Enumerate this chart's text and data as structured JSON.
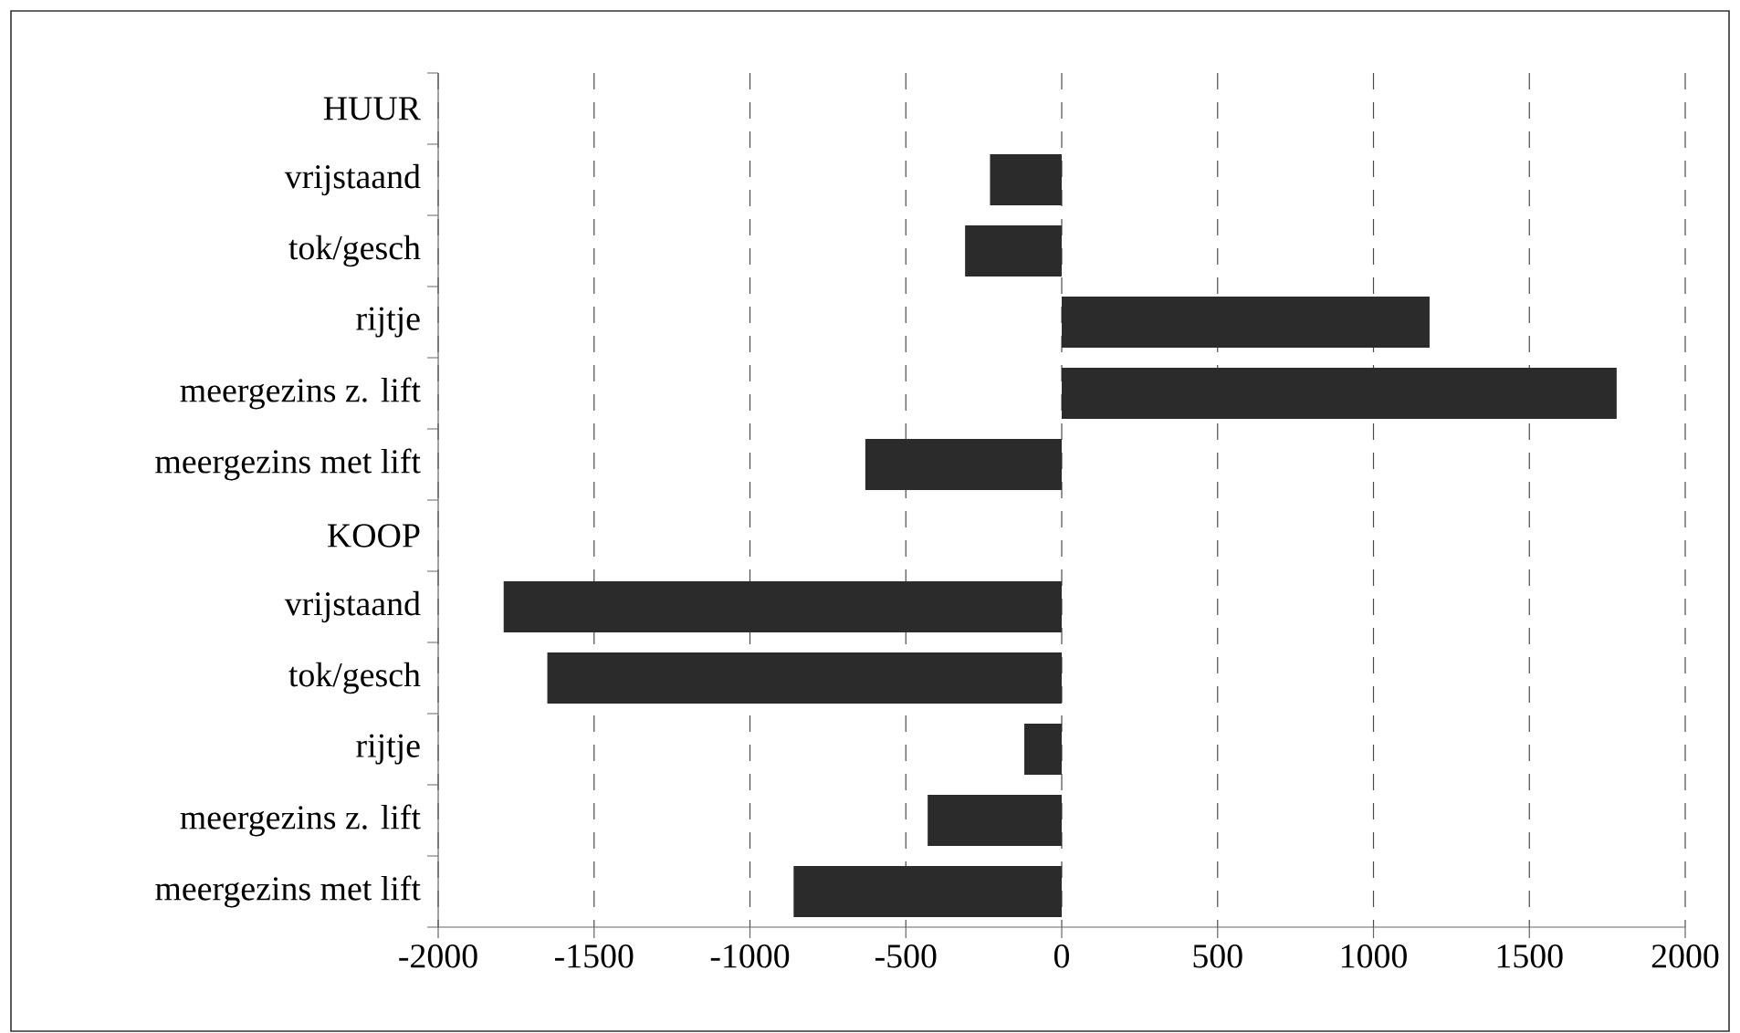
{
  "chart_data": {
    "type": "bar",
    "orientation": "horizontal",
    "categories": [
      "HUUR",
      "vrijstaand",
      "tok/gesch",
      "rijtje",
      "meergezins z. lift",
      "meergezins met lift",
      "KOOP",
      "vrijstaand",
      "tok/gesch",
      "rijtje",
      "meergezins z. lift",
      "meergezins met lift"
    ],
    "values": [
      null,
      -230,
      -310,
      1180,
      1780,
      -630,
      null,
      -1790,
      -1650,
      -120,
      -430,
      -860
    ],
    "color": "#2b2b2b",
    "xlim": [
      -2000,
      2000
    ],
    "xticks": [
      -2000,
      -1500,
      -1000,
      -500,
      0,
      500,
      1000,
      1500,
      2000
    ],
    "grid": "x"
  }
}
